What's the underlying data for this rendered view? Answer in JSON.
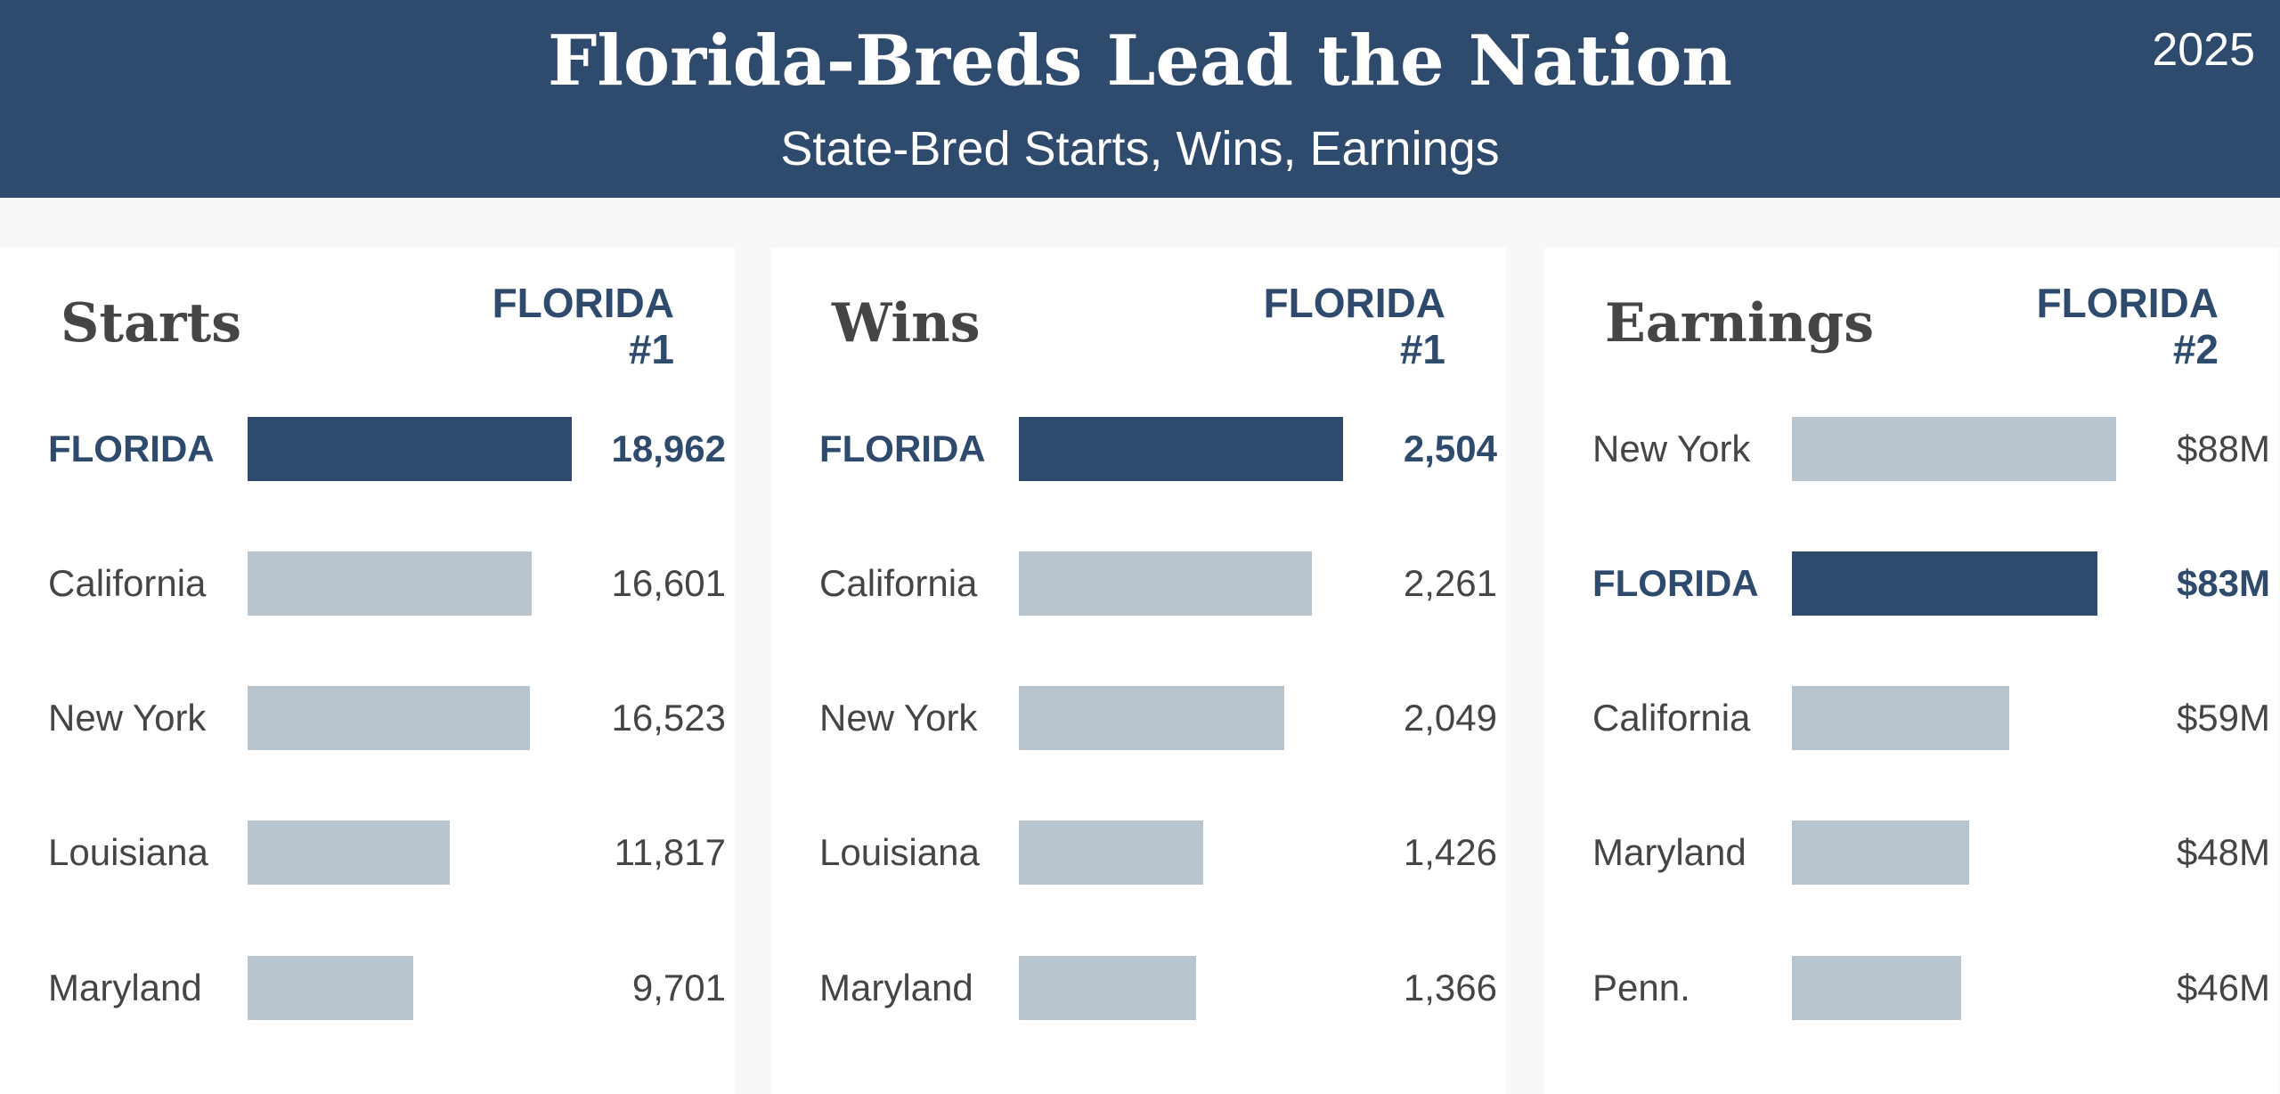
{
  "header": {
    "title": "Florida-Breds Lead the Nation",
    "subtitle": "State-Bred Starts, Wins, Earnings",
    "year": "2025"
  },
  "colors": {
    "header_bg": "#2e4a6d",
    "highlight": "#2e4a6d",
    "bar": "#b8c4ce",
    "text": "#454545"
  },
  "chart_data": [
    {
      "type": "bar",
      "orientation": "horizontal",
      "title": "Starts",
      "rank_line1": "FLORIDA",
      "rank_line2": "#1",
      "categories": [
        "FLORIDA",
        "California",
        "New York",
        "Louisiana",
        "Maryland"
      ],
      "values": [
        18962,
        16601,
        16523,
        11817,
        9701
      ],
      "value_labels": [
        "18,962",
        "16,601",
        "16,523",
        "11,817",
        "9,701"
      ],
      "highlight": "FLORIDA"
    },
    {
      "type": "bar",
      "orientation": "horizontal",
      "title": "Wins",
      "rank_line1": "FLORIDA",
      "rank_line2": "#1",
      "categories": [
        "FLORIDA",
        "California",
        "New York",
        "Louisiana",
        "Maryland"
      ],
      "values": [
        2504,
        2261,
        2049,
        1426,
        1366
      ],
      "value_labels": [
        "2,504",
        "2,261",
        "2,049",
        "1,426",
        "1,366"
      ],
      "highlight": "FLORIDA"
    },
    {
      "type": "bar",
      "orientation": "horizontal",
      "title": "Earnings",
      "rank_line1": "FLORIDA",
      "rank_line2": "#2",
      "categories": [
        "New York",
        "FLORIDA",
        "California",
        "Maryland",
        "Penn."
      ],
      "values": [
        88,
        83,
        59,
        48,
        46
      ],
      "value_labels": [
        "$88M",
        "$83M",
        "$59M",
        "$48M",
        "$46M"
      ],
      "highlight": "FLORIDA"
    }
  ]
}
